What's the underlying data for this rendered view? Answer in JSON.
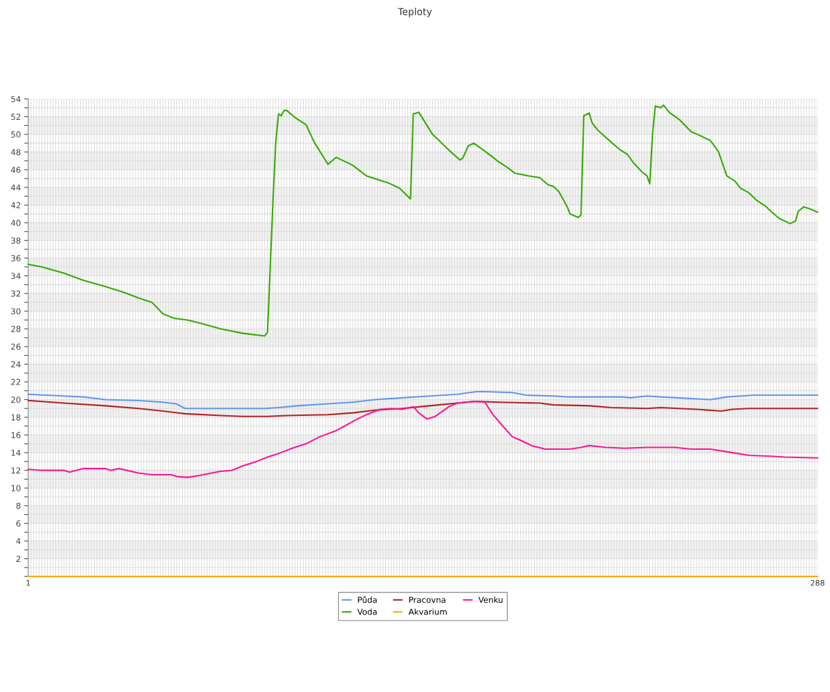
{
  "chart_data": {
    "type": "line",
    "title": "Teploty",
    "xlim": [
      1,
      288
    ],
    "xticks": [
      1,
      {
        "value": 2,
        "label": null
      },
      {
        "value": 3,
        "label": null
      },
      {
        "value": 4,
        "label": null
      },
      {
        "value": 5,
        "label": null
      },
      {
        "value": 6,
        "label": null
      },
      {
        "value": 7,
        "label": null
      },
      {
        "value": 8,
        "label": null
      },
      {
        "value": 9,
        "label": null
      },
      {
        "value": 10,
        "label": null
      },
      {
        "value": 11,
        "label": null
      },
      {
        "value": 12,
        "label": null
      },
      {
        "value": 13,
        "label": null
      },
      {
        "value": 14,
        "label": null
      },
      {
        "value": 15,
        "label": null
      },
      {
        "value": 16,
        "label": null
      },
      {
        "value": 17,
        "label": null
      },
      {
        "value": 18,
        "label": null
      },
      {
        "value": 19,
        "label": null
      },
      {
        "value": 20,
        "label": null
      },
      {
        "value": 21,
        "label": null
      },
      {
        "value": 22,
        "label": null
      },
      {
        "value": 23,
        "label": null
      },
      {
        "value": 24,
        "label": null
      },
      {
        "value": 25,
        "label": null
      },
      {
        "value": 26,
        "label": null
      },
      {
        "value": 27,
        "label": null
      },
      {
        "value": 28,
        "label": null
      },
      {
        "value": 29,
        "label": null
      },
      {
        "value": 30,
        "label": null
      },
      {
        "value": 31,
        "label": null
      },
      {
        "value": 32,
        "label": null
      },
      {
        "value": 33,
        "label": null
      },
      {
        "value": 34,
        "label": null
      },
      {
        "value": 35,
        "label": null
      },
      {
        "value": 36,
        "label": null
      },
      {
        "value": 37,
        "label": null
      },
      {
        "value": 38,
        "label": null
      },
      {
        "value": 39,
        "label": null
      },
      {
        "value": 40,
        "label": null
      },
      {
        "value": 41,
        "label": null
      },
      {
        "value": 42,
        "label": null
      },
      {
        "value": 43,
        "label": null
      },
      {
        "value": 44,
        "label": null
      },
      {
        "value": 45,
        "label": null
      },
      {
        "value": 46,
        "label": null
      },
      {
        "value": 47,
        "label": null
      },
      {
        "value": 48,
        "label": null
      },
      {
        "value": 49,
        "label": null
      },
      {
        "value": 50,
        "label": null
      },
      {
        "value": 51,
        "label": null
      },
      {
        "value": 52,
        "label": null
      },
      {
        "value": 53,
        "label": null
      },
      {
        "value": 54,
        "label": null
      },
      {
        "value": 55,
        "label": null
      },
      {
        "value": 56,
        "label": null
      },
      {
        "value": 57,
        "label": null
      },
      {
        "value": 58,
        "label": null
      },
      {
        "value": 59,
        "label": null
      },
      {
        "value": 60,
        "label": null
      },
      {
        "value": 61,
        "label": null
      },
      {
        "value": 62,
        "label": null
      },
      {
        "value": 63,
        "label": null
      },
      {
        "value": 64,
        "label": null
      },
      {
        "value": 65,
        "label": null
      },
      {
        "value": 66,
        "label": null
      },
      {
        "value": 67,
        "label": null
      },
      {
        "value": 68,
        "label": null
      },
      {
        "value": 69,
        "label": null
      },
      {
        "value": 70,
        "label": null
      },
      {
        "value": 71,
        "label": null
      },
      {
        "value": 72,
        "label": null
      },
      {
        "value": 73,
        "label": null
      },
      {
        "value": 74,
        "label": null
      },
      {
        "value": 75,
        "label": null
      },
      {
        "value": 76,
        "label": null
      },
      {
        "value": 77,
        "label": null
      },
      {
        "value": 78,
        "label": null
      },
      {
        "value": 79,
        "label": null
      },
      {
        "value": 80,
        "label": null
      },
      {
        "value": 81,
        "label": null
      },
      {
        "value": 82,
        "label": null
      },
      {
        "value": 83,
        "label": null
      },
      {
        "value": 84,
        "label": null
      },
      {
        "value": 85,
        "label": null
      },
      {
        "value": 86,
        "label": null
      },
      {
        "value": 87,
        "label": null
      },
      {
        "value": 88,
        "label": null
      },
      {
        "value": 89,
        "label": null
      },
      {
        "value": 90,
        "label": null
      },
      {
        "value": 91,
        "label": null
      },
      {
        "value": 92,
        "label": null
      },
      {
        "value": 93,
        "label": null
      },
      {
        "value": 94,
        "label": null
      },
      {
        "value": 95,
        "label": null
      },
      {
        "value": 96,
        "label": null
      },
      {
        "value": 97,
        "label": null
      },
      {
        "value": 98,
        "label": null
      },
      {
        "value": 99,
        "label": null
      },
      {
        "value": 100,
        "label": null
      },
      {
        "value": 101,
        "label": null
      },
      {
        "value": 102,
        "label": null
      },
      {
        "value": 103,
        "label": null
      },
      {
        "value": 104,
        "label": null
      },
      {
        "value": 105,
        "label": null
      },
      {
        "value": 106,
        "label": null
      },
      {
        "value": 107,
        "label": null
      },
      {
        "value": 108,
        "label": null
      },
      {
        "value": 109,
        "label": null
      },
      {
        "value": 110,
        "label": null
      },
      {
        "value": 111,
        "label": null
      },
      {
        "value": 112,
        "label": null
      },
      {
        "value": 113,
        "label": null
      },
      {
        "value": 114,
        "label": null
      },
      {
        "value": 115,
        "label": null
      },
      {
        "value": 116,
        "label": null
      },
      {
        "value": 117,
        "label": null
      },
      {
        "value": 118,
        "label": null
      },
      {
        "value": 119,
        "label": null
      },
      {
        "value": 120,
        "label": null
      },
      {
        "value": 121,
        "label": null
      },
      {
        "value": 122,
        "label": null
      },
      {
        "value": 123,
        "label": null
      },
      {
        "value": 124,
        "label": null
      },
      {
        "value": 125,
        "label": null
      },
      {
        "value": 126,
        "label": null
      },
      {
        "value": 127,
        "label": null
      },
      {
        "value": 128,
        "label": null
      },
      {
        "value": 129,
        "label": null
      },
      {
        "value": 130,
        "label": null
      },
      {
        "value": 131,
        "label": null
      },
      {
        "value": 132,
        "label": null
      },
      {
        "value": 133,
        "label": null
      },
      {
        "value": 134,
        "label": null
      },
      {
        "value": 135,
        "label": null
      },
      {
        "value": 136,
        "label": null
      },
      {
        "value": 137,
        "label": null
      },
      {
        "value": 138,
        "label": null
      },
      {
        "value": 139,
        "label": null
      },
      {
        "value": 140,
        "label": null
      },
      {
        "value": 141,
        "label": null
      },
      {
        "value": 142,
        "label": null
      },
      {
        "value": 143,
        "label": null
      },
      {
        "value": 144,
        "label": null
      },
      {
        "value": 145,
        "label": null
      },
      {
        "value": 146,
        "label": null
      },
      {
        "value": 147,
        "label": null
      },
      {
        "value": 148,
        "label": null
      },
      {
        "value": 149,
        "label": null
      },
      {
        "value": 150,
        "label": null
      },
      {
        "value": 151,
        "label": null
      },
      {
        "value": 152,
        "label": null
      },
      {
        "value": 153,
        "label": null
      },
      {
        "value": 154,
        "label": null
      },
      {
        "value": 155,
        "label": null
      },
      {
        "value": 156,
        "label": null
      },
      {
        "value": 157,
        "label": null
      },
      {
        "value": 158,
        "label": null
      },
      {
        "value": 159,
        "label": null
      },
      {
        "value": 160,
        "label": null
      },
      {
        "value": 161,
        "label": null
      },
      {
        "value": 162,
        "label": null
      },
      {
        "value": 163,
        "label": null
      },
      {
        "value": 164,
        "label": null
      },
      {
        "value": 165,
        "label": null
      },
      {
        "value": 166,
        "label": null
      },
      {
        "value": 167,
        "label": null
      },
      {
        "value": 168,
        "label": null
      },
      {
        "value": 169,
        "label": null
      },
      {
        "value": 170,
        "label": null
      },
      {
        "value": 171,
        "label": null
      },
      {
        "value": 172,
        "label": null
      },
      {
        "value": 173,
        "label": null
      },
      {
        "value": 174,
        "label": null
      },
      {
        "value": 175,
        "label": null
      },
      {
        "value": 176,
        "label": null
      },
      {
        "value": 177,
        "label": null
      },
      {
        "value": 178,
        "label": null
      },
      {
        "value": 179,
        "label": null
      },
      {
        "value": 180,
        "label": null
      },
      {
        "value": 181,
        "label": null
      },
      {
        "value": 182,
        "label": null
      },
      {
        "value": 183,
        "label": null
      },
      {
        "value": 184,
        "label": null
      },
      {
        "value": 185,
        "label": null
      },
      {
        "value": 186,
        "label": null
      },
      {
        "value": 187,
        "label": null
      },
      {
        "value": 188,
        "label": null
      },
      {
        "value": 189,
        "label": null
      },
      {
        "value": 190,
        "label": null
      },
      {
        "value": 191,
        "label": null
      },
      {
        "value": 192,
        "label": null
      },
      {
        "value": 193,
        "label": null
      },
      {
        "value": 194,
        "label": null
      },
      {
        "value": 195,
        "label": null
      },
      {
        "value": 196,
        "label": null
      },
      {
        "value": 197,
        "label": null
      },
      {
        "value": 198,
        "label": null
      },
      {
        "value": 199,
        "label": null
      },
      {
        "value": 200,
        "label": null
      },
      {
        "value": 201,
        "label": null
      },
      {
        "value": 202,
        "label": null
      },
      {
        "value": 203,
        "label": null
      },
      {
        "value": 204,
        "label": null
      },
      {
        "value": 205,
        "label": null
      },
      {
        "value": 206,
        "label": null
      },
      {
        "value": 207,
        "label": null
      },
      {
        "value": 208,
        "label": null
      },
      {
        "value": 209,
        "label": null
      },
      {
        "value": 210,
        "label": null
      },
      {
        "value": 211,
        "label": null
      },
      {
        "value": 212,
        "label": null
      },
      {
        "value": 213,
        "label": null
      },
      {
        "value": 214,
        "label": null
      },
      {
        "value": 215,
        "label": null
      },
      {
        "value": 216,
        "label": null
      },
      {
        "value": 217,
        "label": null
      },
      {
        "value": 218,
        "label": null
      },
      {
        "value": 219,
        "label": null
      },
      {
        "value": 220,
        "label": null
      },
      {
        "value": 221,
        "label": null
      },
      {
        "value": 222,
        "label": null
      },
      {
        "value": 223,
        "label": null
      },
      {
        "value": 224,
        "label": null
      },
      {
        "value": 225,
        "label": null
      },
      {
        "value": 226,
        "label": null
      },
      {
        "value": 227,
        "label": null
      },
      {
        "value": 228,
        "label": null
      },
      {
        "value": 229,
        "label": null
      },
      {
        "value": 230,
        "label": null
      },
      {
        "value": 231,
        "label": null
      },
      {
        "value": 232,
        "label": null
      },
      {
        "value": 233,
        "label": null
      },
      {
        "value": 234,
        "label": null
      },
      {
        "value": 235,
        "label": null
      },
      {
        "value": 236,
        "label": null
      },
      {
        "value": 237,
        "label": null
      },
      {
        "value": 238,
        "label": null
      },
      {
        "value": 239,
        "label": null
      },
      {
        "value": 240,
        "label": null
      },
      {
        "value": 241,
        "label": null
      },
      {
        "value": 242,
        "label": null
      },
      {
        "value": 243,
        "label": null
      },
      {
        "value": 244,
        "label": null
      },
      {
        "value": 245,
        "label": null
      },
      {
        "value": 246,
        "label": null
      },
      {
        "value": 247,
        "label": null
      },
      {
        "value": 248,
        "label": null
      },
      {
        "value": 249,
        "label": null
      },
      {
        "value": 250,
        "label": null
      },
      {
        "value": 251,
        "label": null
      },
      {
        "value": 252,
        "label": null
      },
      {
        "value": 253,
        "label": null
      },
      {
        "value": 254,
        "label": null
      },
      {
        "value": 255,
        "label": null
      },
      {
        "value": 256,
        "label": null
      },
      {
        "value": 257,
        "label": null
      },
      {
        "value": 258,
        "label": null
      },
      {
        "value": 259,
        "label": null
      },
      {
        "value": 260,
        "label": null
      },
      {
        "value": 261,
        "label": null
      },
      {
        "value": 262,
        "label": null
      },
      {
        "value": 263,
        "label": null
      },
      {
        "value": 264,
        "label": null
      },
      {
        "value": 265,
        "label": null
      },
      {
        "value": 266,
        "label": null
      },
      {
        "value": 267,
        "label": null
      },
      {
        "value": 268,
        "label": null
      },
      {
        "value": 269,
        "label": null
      },
      {
        "value": 270,
        "label": null
      },
      {
        "value": 271,
        "label": null
      },
      {
        "value": 272,
        "label": null
      },
      {
        "value": 273,
        "label": null
      },
      {
        "value": 274,
        "label": null
      },
      {
        "value": 275,
        "label": null
      },
      {
        "value": 276,
        "label": null
      },
      {
        "value": 277,
        "label": null
      },
      {
        "value": 278,
        "label": null
      },
      {
        "value": 279,
        "label": null
      },
      {
        "value": 280,
        "label": null
      },
      {
        "value": 281,
        "label": null
      },
      {
        "value": 282,
        "label": null
      },
      {
        "value": 283,
        "label": null
      },
      {
        "value": 284,
        "label": null
      },
      {
        "value": 285,
        "label": null
      },
      {
        "value": 286,
        "label": null
      },
      {
        "value": 287,
        "label": null
      },
      288
    ],
    "ylim": [
      0,
      54
    ],
    "yticks": [
      {
        "value": 0,
        "label": null
      },
      {
        "value": 1,
        "label": null
      },
      2,
      {
        "value": 3,
        "label": null
      },
      4,
      {
        "value": 5,
        "label": null
      },
      6,
      {
        "value": 7,
        "label": null
      },
      8,
      {
        "value": 9,
        "label": null
      },
      10,
      {
        "value": 11,
        "label": null
      },
      12,
      {
        "value": 13,
        "label": null
      },
      14,
      {
        "value": 15,
        "label": null
      },
      16,
      {
        "value": 17,
        "label": null
      },
      18,
      {
        "value": 19,
        "label": null
      },
      20,
      {
        "value": 21,
        "label": null
      },
      22,
      {
        "value": 23,
        "label": null
      },
      24,
      {
        "value": 25,
        "label": null
      },
      26,
      {
        "value": 27,
        "label": null
      },
      28,
      {
        "value": 29,
        "label": null
      },
      30,
      {
        "value": 31,
        "label": null
      },
      32,
      {
        "value": 33,
        "label": null
      },
      34,
      {
        "value": 35,
        "label": null
      },
      36,
      {
        "value": 37,
        "label": null
      },
      38,
      {
        "value": 39,
        "label": null
      },
      40,
      {
        "value": 41,
        "label": null
      },
      42,
      {
        "value": 43,
        "label": null
      },
      44,
      {
        "value": 45,
        "label": null
      },
      46,
      {
        "value": 47,
        "label": null
      },
      48,
      {
        "value": 49,
        "label": null
      },
      50,
      {
        "value": 51,
        "label": null
      },
      52,
      {
        "value": 53,
        "label": null
      },
      54
    ],
    "grid": true,
    "legend": "bottom",
    "marker": "none",
    "line_style": "solid",
    "bands": [
      {
        "axis": "y",
        "from": 2,
        "to": 4,
        "color": "#f2f2f2"
      },
      {
        "axis": "y",
        "from": 6,
        "to": 8,
        "color": "#f2f2f2"
      },
      {
        "axis": "y",
        "from": 10,
        "to": 12,
        "color": "#f2f2f2"
      },
      {
        "axis": "y",
        "from": 14,
        "to": 16,
        "color": "#f2f2f2"
      },
      {
        "axis": "y",
        "from": 18,
        "to": 20,
        "color": "#f2f2f2"
      },
      {
        "axis": "y",
        "from": 22,
        "to": 24,
        "color": "#f2f2f2"
      },
      {
        "axis": "y",
        "from": 26,
        "to": 28,
        "color": "#f2f2f2"
      },
      {
        "axis": "y",
        "from": 30,
        "to": 32,
        "color": "#f2f2f2"
      },
      {
        "axis": "y",
        "from": 34,
        "to": 36,
        "color": "#f2f2f2"
      },
      {
        "axis": "y",
        "from": 38,
        "to": 40,
        "color": "#f2f2f2"
      },
      {
        "axis": "y",
        "from": 42,
        "to": 44,
        "color": "#f2f2f2"
      },
      {
        "axis": "y",
        "from": 46,
        "to": 48,
        "color": "#f2f2f2"
      },
      {
        "axis": "y",
        "from": 50,
        "to": 52,
        "color": "#f2f2f2"
      }
    ],
    "series": [
      {
        "name": "Půda",
        "color": "#6495ed",
        "x": [
          1,
          14,
          21,
          29,
          41,
          50,
          55,
          58,
          87,
          92,
          99,
          109,
          119,
          127,
          137,
          147,
          157,
          164,
          167,
          177,
          182,
          192,
          197,
          217,
          220,
          226,
          231,
          237,
          249,
          255,
          265,
          288
        ],
        "values": [
          20.6,
          20.4,
          20.3,
          20.0,
          19.9,
          19.7,
          19.5,
          19.0,
          19.0,
          19.1,
          19.3,
          19.5,
          19.7,
          20.0,
          20.2,
          20.4,
          20.6,
          20.9,
          20.9,
          20.8,
          20.5,
          20.4,
          20.3,
          20.3,
          20.2,
          20.4,
          20.3,
          20.2,
          20.0,
          20.3,
          20.5,
          20.5
        ]
      },
      {
        "name": "Voda",
        "color": "#33aa00",
        "x": [
          1,
          6,
          14,
          21,
          29,
          36,
          41,
          46,
          50,
          54,
          59,
          64,
          71,
          79,
          87,
          88,
          90,
          91,
          92,
          93,
          94,
          95,
          98,
          102,
          105,
          110,
          113,
          119,
          124,
          132,
          136,
          140,
          141,
          143,
          148,
          154,
          158,
          159,
          161,
          163,
          167,
          170,
          172,
          175,
          178,
          183,
          187,
          190,
          192,
          194,
          197,
          198,
          201,
          202,
          203,
          205,
          206,
          208,
          213,
          216,
          219,
          221,
          224,
          226,
          227,
          228,
          229,
          231,
          232,
          234,
          238,
          242,
          245,
          249,
          250,
          252,
          254,
          255,
          258,
          260,
          263,
          266,
          269,
          271,
          274,
          278,
          280,
          281,
          283,
          285,
          288
        ],
        "values": [
          35.3,
          35.0,
          34.3,
          33.5,
          32.8,
          32.1,
          31.5,
          31.0,
          29.7,
          29.2,
          29.0,
          28.6,
          28.0,
          27.5,
          27.2,
          27.6,
          42.5,
          49.1,
          52.3,
          52.1,
          52.7,
          52.7,
          51.9,
          51.1,
          49.1,
          46.6,
          47.4,
          46.5,
          45.3,
          44.5,
          43.9,
          42.7,
          52.3,
          52.5,
          50.0,
          48.2,
          47.1,
          47.3,
          48.7,
          49.0,
          48.1,
          47.4,
          46.9,
          46.3,
          45.6,
          45.3,
          45.1,
          44.3,
          44.1,
          43.5,
          41.8,
          41.0,
          40.6,
          40.9,
          52.1,
          52.4,
          51.3,
          50.5,
          49.1,
          48.3,
          47.7,
          46.8,
          45.8,
          45.3,
          44.4,
          50.0,
          53.2,
          53.0,
          53.3,
          52.5,
          51.6,
          50.3,
          49.9,
          49.3,
          48.9,
          48.0,
          46.2,
          45.3,
          44.7,
          43.9,
          43.4,
          42.5,
          41.9,
          41.3,
          40.5,
          39.9,
          40.2,
          41.3,
          41.8,
          41.6,
          41.2
        ]
      },
      {
        "name": "Pracovna",
        "color": "#b22222",
        "x": [
          1,
          14,
          29,
          41,
          50,
          58,
          71,
          79,
          88,
          95,
          110,
          119,
          127,
          137,
          147,
          157,
          164,
          172,
          187,
          192,
          205,
          213,
          226,
          231,
          244,
          253,
          257,
          263,
          288
        ],
        "values": [
          19.9,
          19.6,
          19.3,
          19.0,
          18.7,
          18.4,
          18.2,
          18.1,
          18.1,
          18.2,
          18.3,
          18.5,
          18.8,
          19.0,
          19.3,
          19.6,
          19.8,
          19.7,
          19.6,
          19.4,
          19.3,
          19.1,
          19.0,
          19.1,
          18.9,
          18.7,
          18.9,
          19.0,
          19.0
        ]
      },
      {
        "name": "Akvarium",
        "color": "#ffa500",
        "x": [
          1,
          288
        ],
        "values": [
          0,
          0
        ]
      },
      {
        "name": "Venku",
        "color": "#ff1493",
        "x": [
          1,
          6,
          14,
          16,
          21,
          29,
          31,
          34,
          41,
          46,
          53,
          55,
          59,
          63,
          71,
          75,
          79,
          84,
          88,
          92,
          97,
          102,
          107,
          113,
          116,
          120,
          124,
          129,
          133,
          137,
          141,
          143,
          146,
          149,
          154,
          157,
          163,
          167,
          170,
          173,
          177,
          180,
          184,
          189,
          198,
          202,
          205,
          211,
          218,
          226,
          236,
          242,
          249,
          257,
          263,
          271,
          276,
          288
        ],
        "values": [
          12.1,
          12.0,
          12.0,
          11.8,
          12.2,
          12.2,
          12.0,
          12.2,
          11.7,
          11.5,
          11.5,
          11.3,
          11.2,
          11.4,
          11.9,
          12.0,
          12.5,
          13.0,
          13.5,
          13.9,
          14.5,
          15.0,
          15.8,
          16.5,
          17.0,
          17.7,
          18.3,
          18.9,
          19.0,
          18.9,
          19.2,
          18.5,
          17.8,
          18.1,
          19.2,
          19.6,
          19.8,
          19.7,
          18.3,
          17.2,
          15.8,
          15.4,
          14.8,
          14.4,
          14.4,
          14.6,
          14.8,
          14.6,
          14.5,
          14.6,
          14.6,
          14.4,
          14.4,
          14.0,
          13.7,
          13.6,
          13.5,
          13.4
        ]
      }
    ]
  }
}
